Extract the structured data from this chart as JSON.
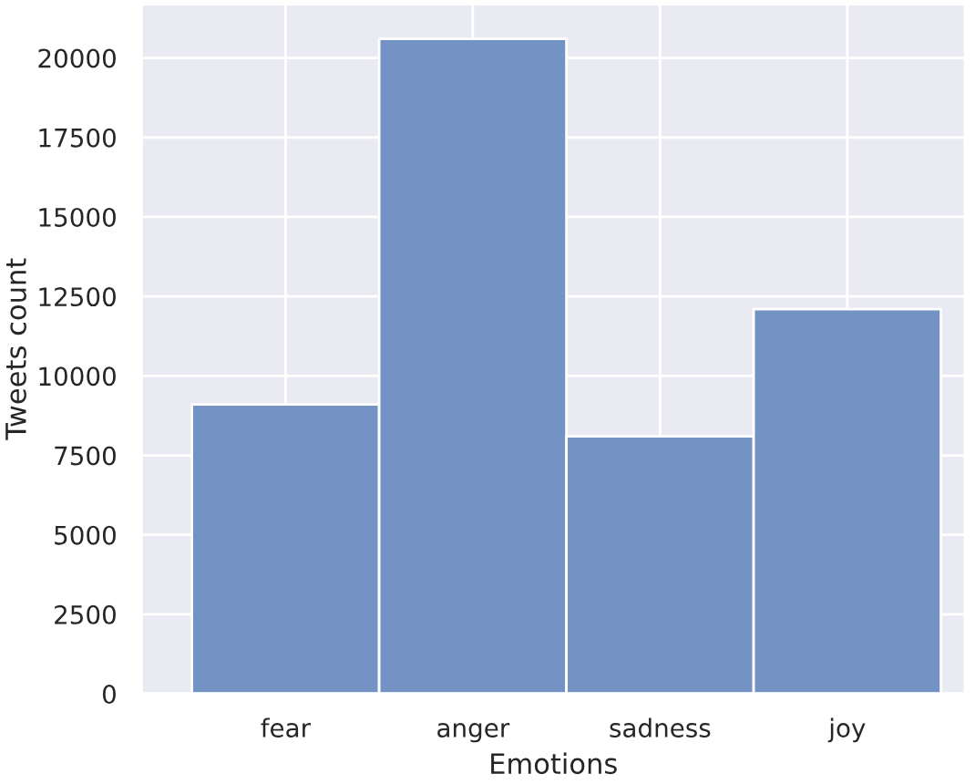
{
  "chart_data": {
    "type": "bar",
    "xlabel": "Emotions",
    "ylabel": "Tweets count",
    "categories": [
      "fear",
      "anger",
      "sadness",
      "joy"
    ],
    "values": [
      9100,
      20600,
      8100,
      12100
    ],
    "color": "#7393c5",
    "ylim": [
      0,
      21700
    ],
    "yticks": [
      0,
      2500,
      5000,
      7500,
      10000,
      12500,
      15000,
      17500,
      20000
    ],
    "grid": true
  }
}
